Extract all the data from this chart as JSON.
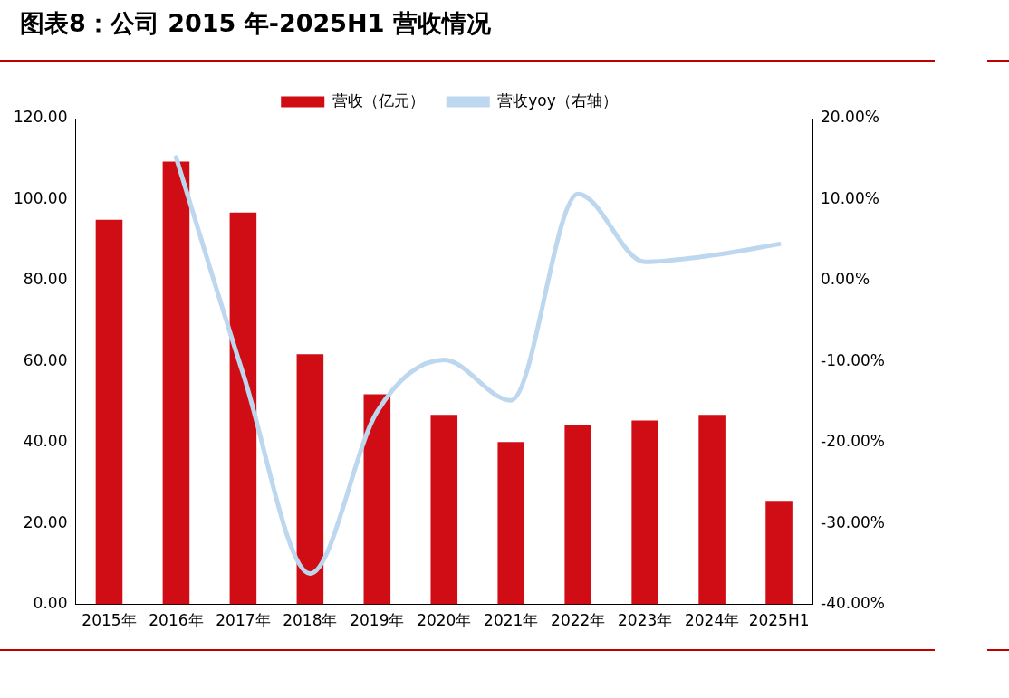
{
  "chart_data": {
    "type": "bar",
    "title": "图表8：公司 2015 年-2025H1 营收情况",
    "categories": [
      "2015年",
      "2016年",
      "2017年",
      "2018年",
      "2019年",
      "2020年",
      "2021年",
      "2022年",
      "2023年",
      "2024年",
      "2025H1"
    ],
    "series": [
      {
        "name": "营收（亿元）",
        "color": "#d00d14",
        "values": [
          95,
          109.4,
          96.8,
          61.8,
          51.9,
          46.8,
          40.1,
          44.4,
          45.4,
          46.8,
          25.6
        ]
      },
      {
        "name": "营收yoy（右轴）",
        "type": "line",
        "axis": "y2",
        "color": "#bdd7ee",
        "values": [
          null,
          15.2,
          -11.5,
          -36.2,
          -16.2,
          -9.8,
          -14.8,
          10.7,
          2.3,
          3.1,
          4.5
        ]
      }
    ],
    "ylim": [
      0,
      120
    ],
    "yticks": [
      {
        "value": 0,
        "label": "0.00"
      },
      {
        "value": 20,
        "label": "20.00"
      },
      {
        "value": 40,
        "label": "40.00"
      },
      {
        "value": 60,
        "label": "60.00"
      },
      {
        "value": 80,
        "label": "80.00"
      },
      {
        "value": 100,
        "label": "100.00"
      },
      {
        "value": 120,
        "label": "120.00"
      }
    ],
    "y2lim": [
      -40,
      20
    ],
    "y2ticks": [
      {
        "value": -40,
        "label": "-40.00%"
      },
      {
        "value": -30,
        "label": "-30.00%"
      },
      {
        "value": -20,
        "label": "-20.00%"
      },
      {
        "value": -10,
        "label": "-10.00%"
      },
      {
        "value": 0,
        "label": "0.00%"
      },
      {
        "value": 10,
        "label": "10.00%"
      },
      {
        "value": 20,
        "label": "20.00%"
      }
    ],
    "legend": "top",
    "marker": "none"
  }
}
